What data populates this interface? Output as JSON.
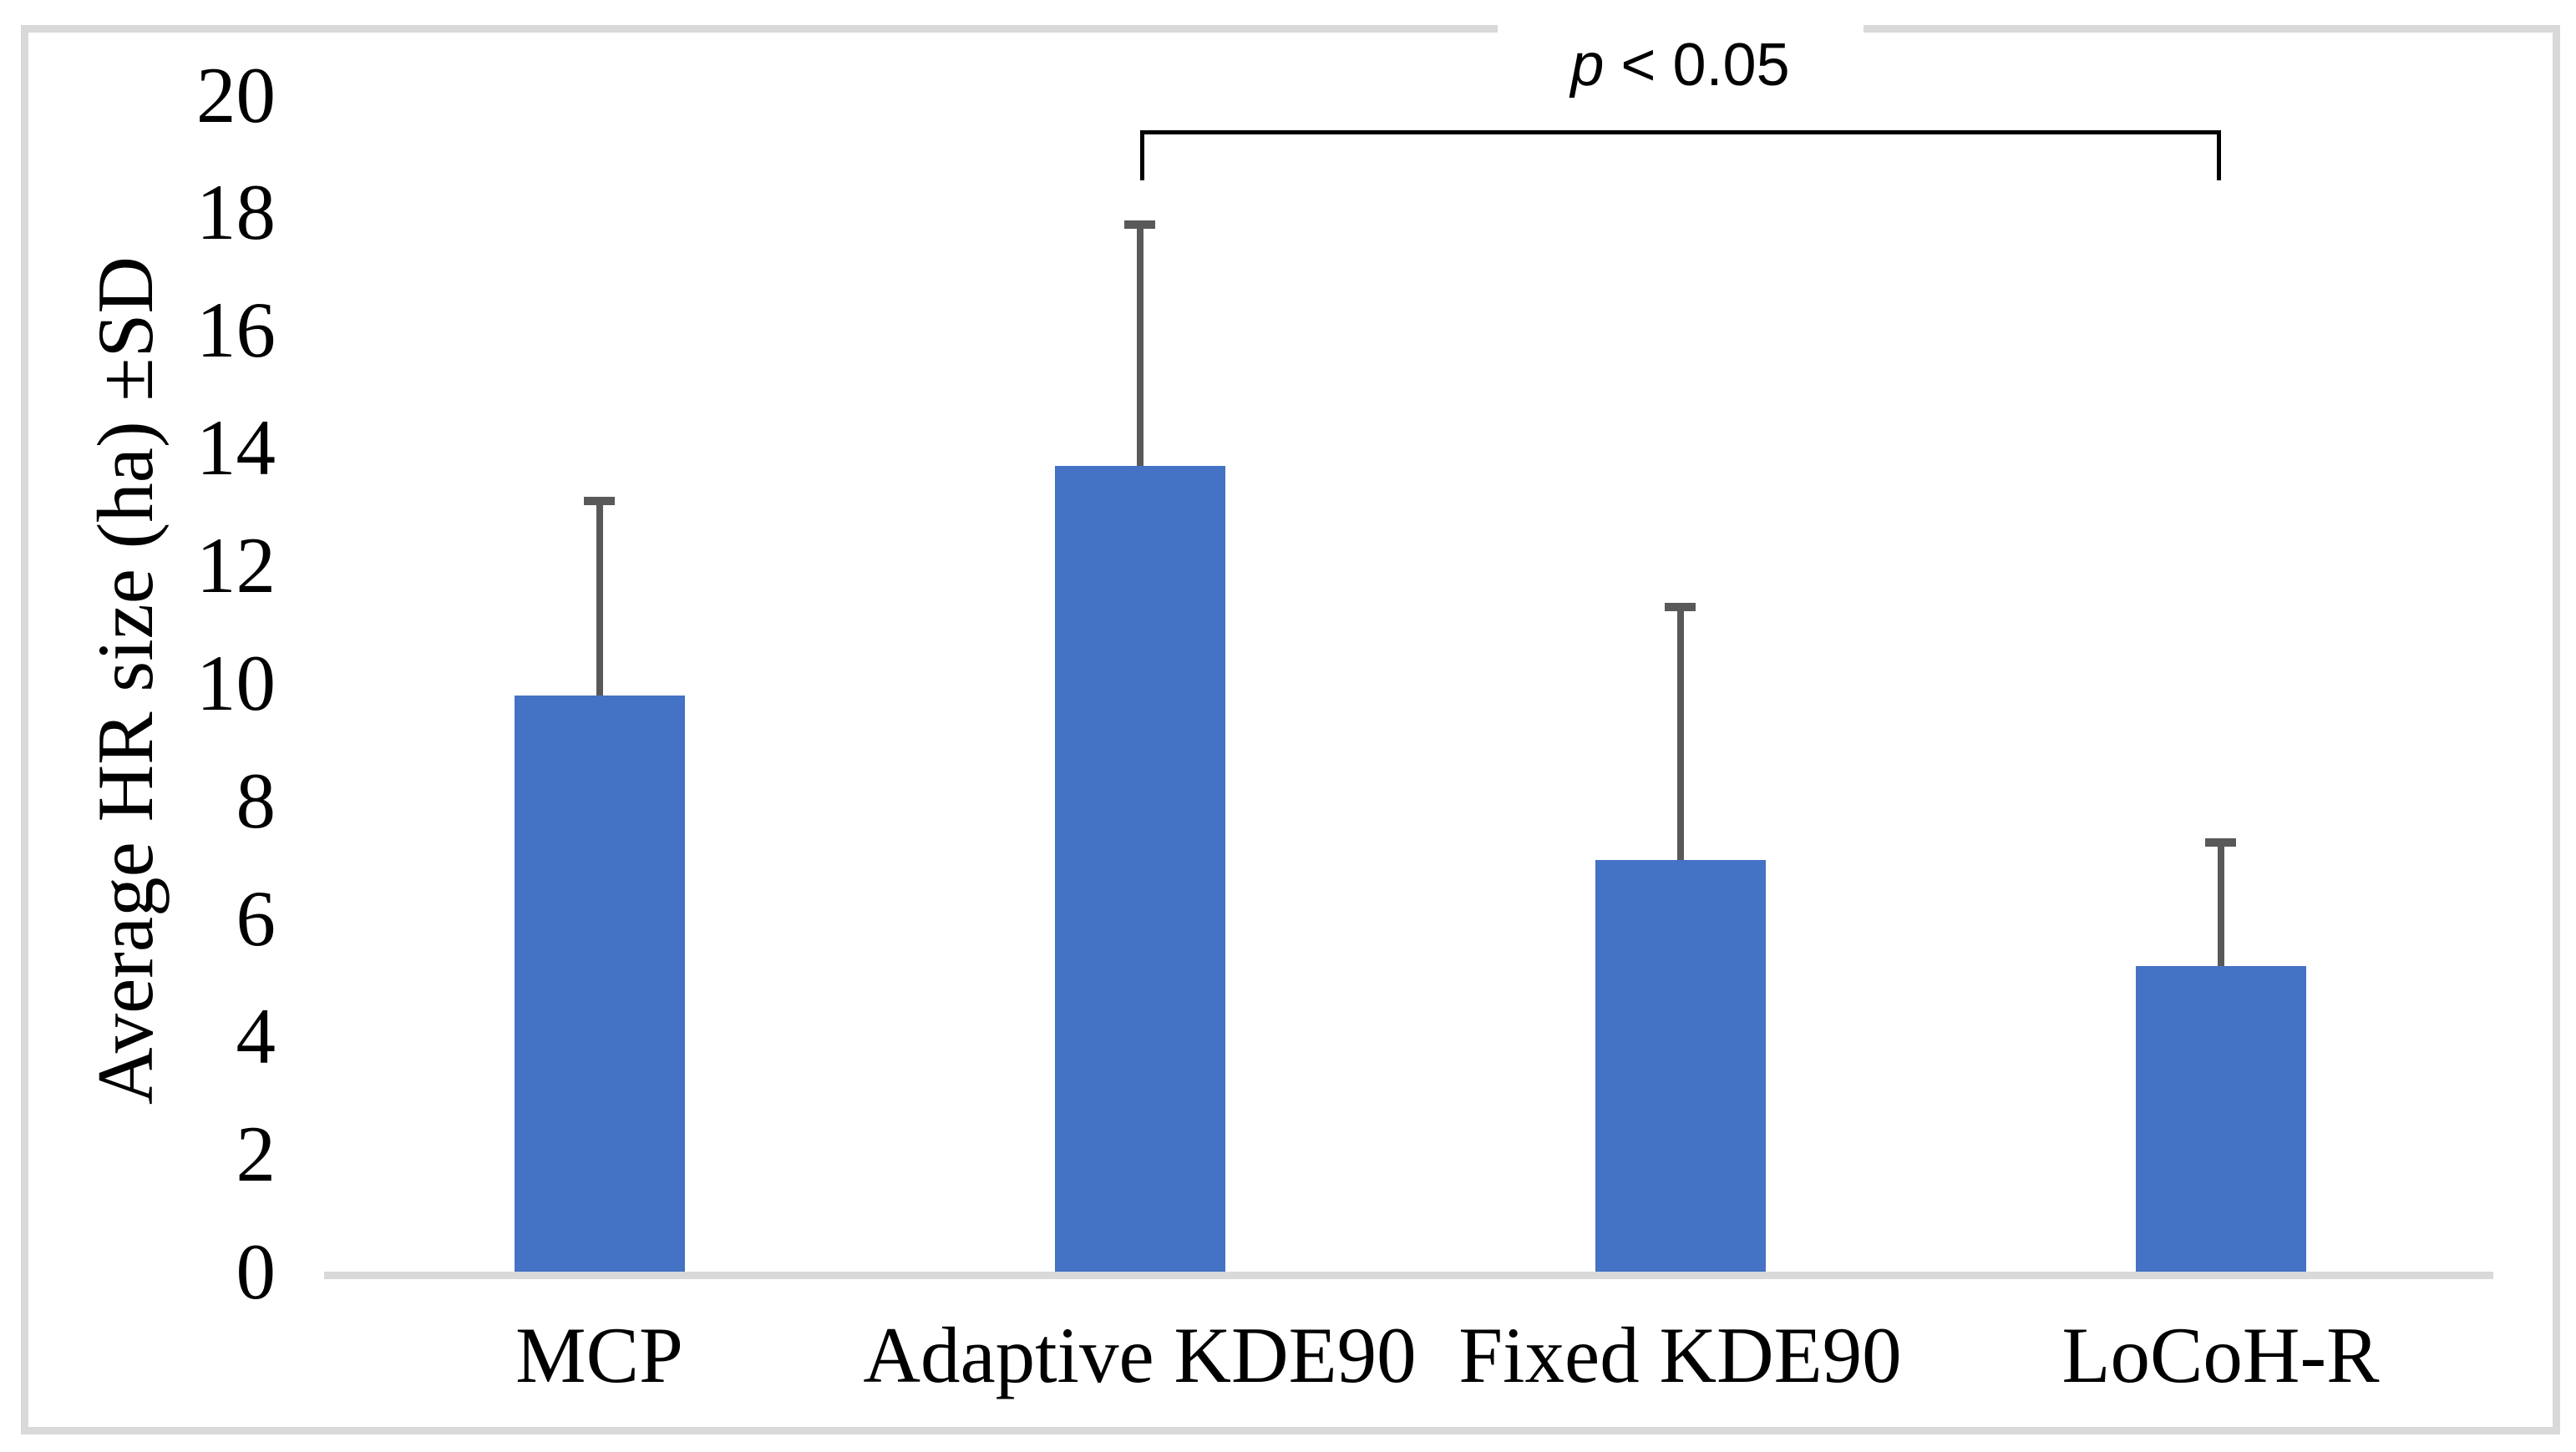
{
  "figure": {
    "background": "#ffffff",
    "frame_border_color": "#d9d9d9"
  },
  "chart_data": {
    "type": "bar",
    "title": "",
    "categories": [
      "MCP",
      "Adaptive KDE90",
      "Fixed KDE90",
      "LoCoH-R"
    ],
    "values": [
      9.8,
      13.7,
      7.0,
      5.2
    ],
    "error_upper": [
      3.3,
      4.1,
      4.3,
      2.1
    ],
    "xlabel": "",
    "ylabel": "Average HR size (ha) ±SD",
    "ylim": [
      0,
      20
    ],
    "ytick_step": 2,
    "yticks": [
      0,
      2,
      4,
      6,
      8,
      10,
      12,
      14,
      16,
      18,
      20
    ],
    "grid": false,
    "legend_position": "none",
    "bar_color": "#4472C4",
    "error_bar_color": "#595959",
    "axis_line_color": "#d9d9d9",
    "annotation": {
      "text": "p < 0.05",
      "text_italic": "p",
      "text_rest": " < 0.05",
      "from_category": "Adaptive KDE90",
      "to_category": "LoCoH-R",
      "bracket_y": 19.4
    }
  }
}
